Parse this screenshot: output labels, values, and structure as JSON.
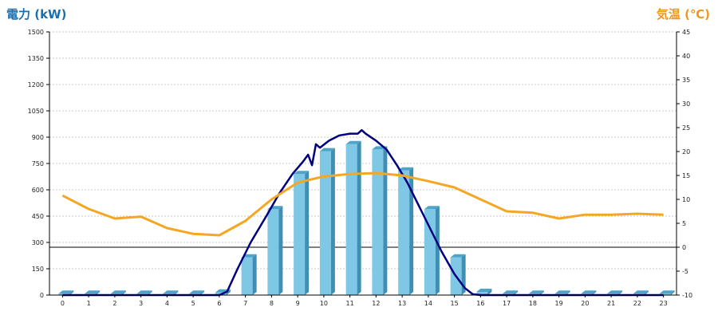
{
  "chart_data": {
    "type": "bar+line",
    "left_axis_title": "電力 (kW)",
    "right_axis_title": "気温 (℃)",
    "categories": [
      "0",
      "1",
      "2",
      "3",
      "4",
      "5",
      "6",
      "7",
      "8",
      "9",
      "10",
      "11",
      "12",
      "13",
      "14",
      "15",
      "16",
      "17",
      "18",
      "19",
      "20",
      "21",
      "22",
      "23"
    ],
    "left_ylim": [
      0,
      1500
    ],
    "left_ticks": [
      "0",
      "150",
      "300",
      "450",
      "600",
      "750",
      "900",
      "1050",
      "1200",
      "1350",
      "1500"
    ],
    "right_ylim": [
      -10,
      45
    ],
    "right_ticks": [
      "-10",
      "-5",
      "0",
      "5",
      "10",
      "15",
      "20",
      "25",
      "30",
      "35",
      "40",
      "45"
    ],
    "grid": true,
    "series": [
      {
        "kind": "bar",
        "axis": "left",
        "color": "#7ec8e6",
        "values": [
          8,
          8,
          8,
          8,
          8,
          8,
          15,
          215,
          490,
          690,
          820,
          860,
          830,
          710,
          490,
          215,
          18,
          8,
          8,
          8,
          8,
          8,
          8,
          8
        ]
      },
      {
        "kind": "line",
        "axis": "left",
        "color": "#000080",
        "points": [
          [
            0,
            0
          ],
          [
            6,
            0
          ],
          [
            6.3,
            20
          ],
          [
            6.7,
            150
          ],
          [
            7.2,
            300
          ],
          [
            7.8,
            450
          ],
          [
            8.3,
            580
          ],
          [
            8.8,
            690
          ],
          [
            9.2,
            760
          ],
          [
            9.4,
            800
          ],
          [
            9.55,
            740
          ],
          [
            9.7,
            860
          ],
          [
            9.85,
            840
          ],
          [
            10.2,
            880
          ],
          [
            10.6,
            910
          ],
          [
            11,
            920
          ],
          [
            11.3,
            920
          ],
          [
            11.45,
            940
          ],
          [
            11.6,
            920
          ],
          [
            12,
            880
          ],
          [
            12.4,
            830
          ],
          [
            12.8,
            740
          ],
          [
            13.2,
            640
          ],
          [
            13.6,
            520
          ],
          [
            14,
            400
          ],
          [
            14.5,
            250
          ],
          [
            15,
            120
          ],
          [
            15.4,
            40
          ],
          [
            15.7,
            5
          ],
          [
            16,
            0
          ],
          [
            23,
            0
          ]
        ]
      },
      {
        "kind": "line",
        "axis": "right",
        "color": "#f5a623",
        "values": [
          10.8,
          8,
          6,
          6.4,
          4,
          2.8,
          2.5,
          5.5,
          10,
          13.5,
          14.8,
          15.3,
          15.5,
          15,
          13.8,
          12.5,
          10,
          7.5,
          7.2,
          6,
          6.8,
          6.8,
          7,
          6.8
        ]
      }
    ]
  }
}
